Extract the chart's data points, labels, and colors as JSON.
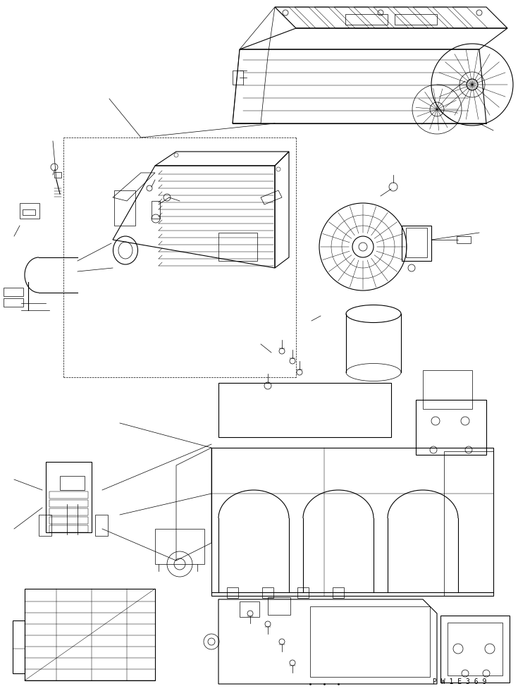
{
  "background_color": "#ffffff",
  "line_color": "#000000",
  "watermark": "P W 1 E 3 6 9",
  "fig_width": 7.35,
  "fig_height": 9.8,
  "dpi": 100,
  "lw_main": 0.8,
  "lw_thin": 0.5,
  "lw_detail": 0.35
}
